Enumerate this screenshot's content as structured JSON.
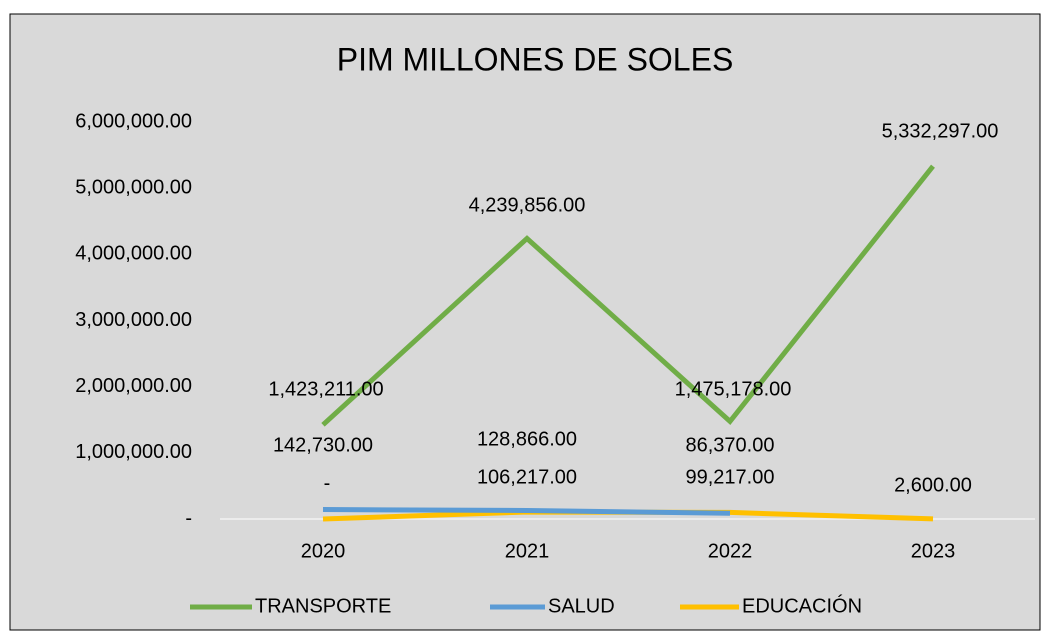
{
  "chart_data": {
    "type": "line",
    "title": "PIM MILLONES DE SOLES",
    "categories": [
      "2020",
      "2021",
      "2022",
      "2023"
    ],
    "series": [
      {
        "name": "TRANSPORTE",
        "color": "#70ad47",
        "values": [
          1423211,
          4239856,
          1475178,
          5332297
        ],
        "value_labels": [
          "1,423,211.00",
          "4,239,856.00",
          "1,475,178.00",
          "5,332,297.00"
        ]
      },
      {
        "name": "SALUD",
        "color": "#5b9bd5",
        "values": [
          142730,
          128866,
          86370,
          null
        ],
        "value_labels": [
          "142,730.00",
          "128,866.00",
          "86,370.00",
          null
        ]
      },
      {
        "name": "EDUCACIÓN",
        "color": "#ffc000",
        "values": [
          0,
          106217,
          99217,
          2600
        ],
        "value_labels": [
          "-",
          "106,217.00",
          "99,217.00",
          "2,600.00"
        ]
      }
    ],
    "ylim": [
      0,
      6000000
    ],
    "yticks": [
      {
        "value": 0,
        "label": "-"
      },
      {
        "value": 1000000,
        "label": "1,000,000.00"
      },
      {
        "value": 2000000,
        "label": "2,000,000.00"
      },
      {
        "value": 3000000,
        "label": "3,000,000.00"
      },
      {
        "value": 4000000,
        "label": "4,000,000.00"
      },
      {
        "value": 5000000,
        "label": "5,000,000.00"
      },
      {
        "value": 6000000,
        "label": "6,000,000.00"
      }
    ],
    "legend": "bottom"
  }
}
